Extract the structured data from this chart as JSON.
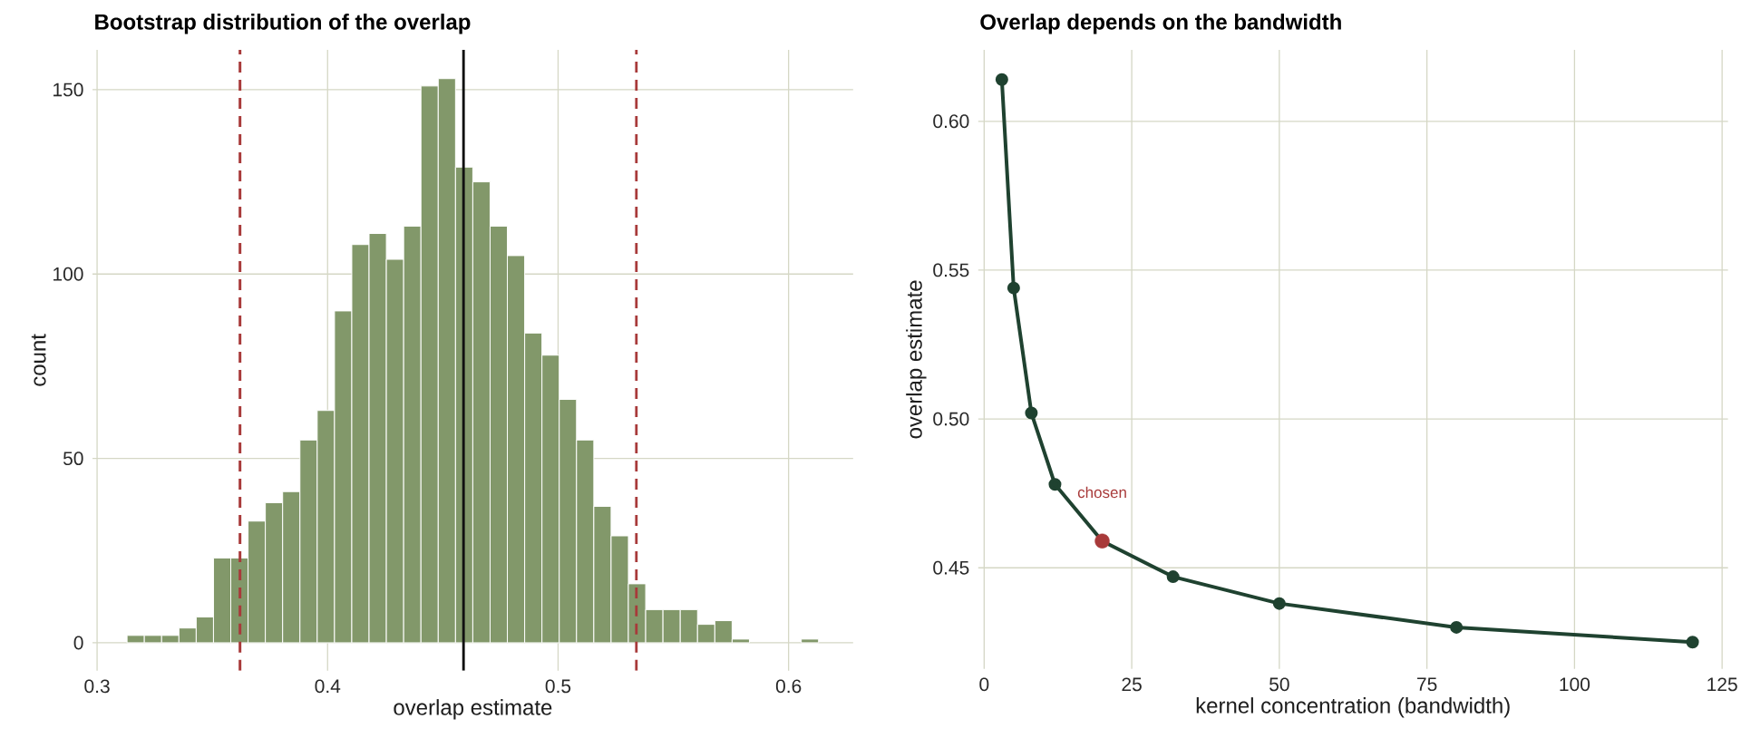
{
  "chart_data": [
    {
      "type": "histogram",
      "title": "Bootstrap distribution of the overlap",
      "xlabel": "overlap estimate",
      "ylabel": "count",
      "bins": [
        0.313,
        0.3205,
        0.328,
        0.3355,
        0.343,
        0.3505,
        0.358,
        0.3655,
        0.373,
        0.3805,
        0.388,
        0.3955,
        0.403,
        0.4105,
        0.418,
        0.4255,
        0.433,
        0.4405,
        0.448,
        0.4555,
        0.463,
        0.4705,
        0.478,
        0.4855,
        0.493,
        0.5005,
        0.508,
        0.5155,
        0.523,
        0.5305,
        0.538,
        0.5455,
        0.553,
        0.5605,
        0.568,
        0.5755,
        0.583,
        0.5905,
        0.598,
        0.6055,
        0.613
      ],
      "values": [
        2,
        2,
        2,
        4,
        7,
        23,
        23,
        33,
        38,
        41,
        55,
        63,
        90,
        108,
        111,
        104,
        113,
        151,
        153,
        129,
        125,
        113,
        105,
        84,
        78,
        66,
        55,
        37,
        29,
        16,
        9,
        9,
        9,
        5,
        6,
        1,
        0,
        0,
        0,
        1
      ],
      "color": "#82986a",
      "xlim": [
        0.298,
        0.628
      ],
      "ylim": [
        -7.6,
        160.8
      ],
      "xticks": [
        0.3,
        0.4,
        0.5,
        0.6
      ],
      "yticks": [
        0,
        50,
        100,
        150
      ],
      "grid": true,
      "ref_lines": [
        {
          "axis": "x",
          "value": 0.362,
          "color": "#a83a3a",
          "line_style": "dashed"
        },
        {
          "axis": "x",
          "value": 0.459,
          "color": "#111111",
          "line_style": "solid"
        },
        {
          "axis": "x",
          "value": 0.534,
          "color": "#a83a3a",
          "line_style": "dashed"
        }
      ]
    },
    {
      "type": "line",
      "title": "Overlap depends on the bandwidth",
      "xlabel": "kernel concentration (bandwidth)",
      "ylabel": "overlap estimate",
      "x": [
        3,
        5,
        8,
        12,
        20,
        32,
        50,
        80,
        120
      ],
      "series": [
        {
          "color": "#1f4230",
          "values": [
            0.614,
            0.544,
            0.502,
            0.478,
            0.459,
            0.447,
            0.438,
            0.43,
            0.425
          ]
        },
        {
          "type": "scatter",
          "color": "#a83a3a",
          "x": [
            20
          ],
          "values": [
            0.459
          ]
        }
      ],
      "marker": "circle",
      "grid": true,
      "xlim": [
        -1,
        126
      ],
      "ylim": [
        0.416,
        0.624
      ],
      "xticks": [
        0,
        25,
        50,
        75,
        100,
        125
      ],
      "yticks": [
        {
          "value": 0.45,
          "label": "0.45"
        },
        {
          "value": 0.5,
          "label": "0.50"
        },
        {
          "value": 0.55,
          "label": "0.55"
        },
        {
          "value": 0.6,
          "label": "0.60"
        }
      ],
      "annotations": [
        "chosen"
      ]
    }
  ]
}
